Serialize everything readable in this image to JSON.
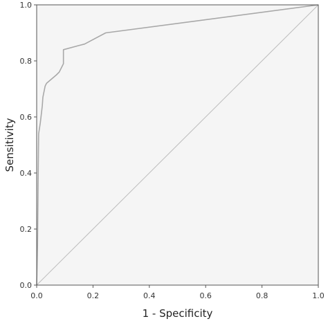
{
  "chart_data": {
    "type": "line",
    "title": "",
    "xlabel": "1 - Specificity",
    "ylabel": "Sensitivity",
    "xlim": [
      0,
      1
    ],
    "ylim": [
      0,
      1
    ],
    "xticks": [
      "0.0",
      "0.2",
      "0.4",
      "0.6",
      "0.8",
      "1.0"
    ],
    "yticks": [
      "0.0",
      "0.2",
      "0.4",
      "0.6",
      "0.8",
      "1.0"
    ],
    "grid": false,
    "legend": "none",
    "colors": {
      "plot_background": "#f5f5f5",
      "roc_line": "#a8a8a8",
      "reference_line": "#bdbdbd",
      "frame": "#555555"
    },
    "series": [
      {
        "x": [
          0.0,
          0.003,
          0.005,
          0.007,
          0.01,
          0.013,
          0.02,
          0.022,
          0.03,
          0.035,
          0.07,
          0.08,
          0.09,
          0.095,
          0.095,
          0.15,
          0.17,
          0.245,
          1.0
        ],
        "y": [
          0.0,
          0.14,
          0.36,
          0.54,
          0.56,
          0.58,
          0.64,
          0.67,
          0.71,
          0.72,
          0.75,
          0.76,
          0.78,
          0.79,
          0.84,
          0.855,
          0.86,
          0.9,
          1.0
        ]
      },
      {
        "x": [
          0,
          1
        ],
        "y": [
          0,
          1
        ]
      }
    ]
  }
}
